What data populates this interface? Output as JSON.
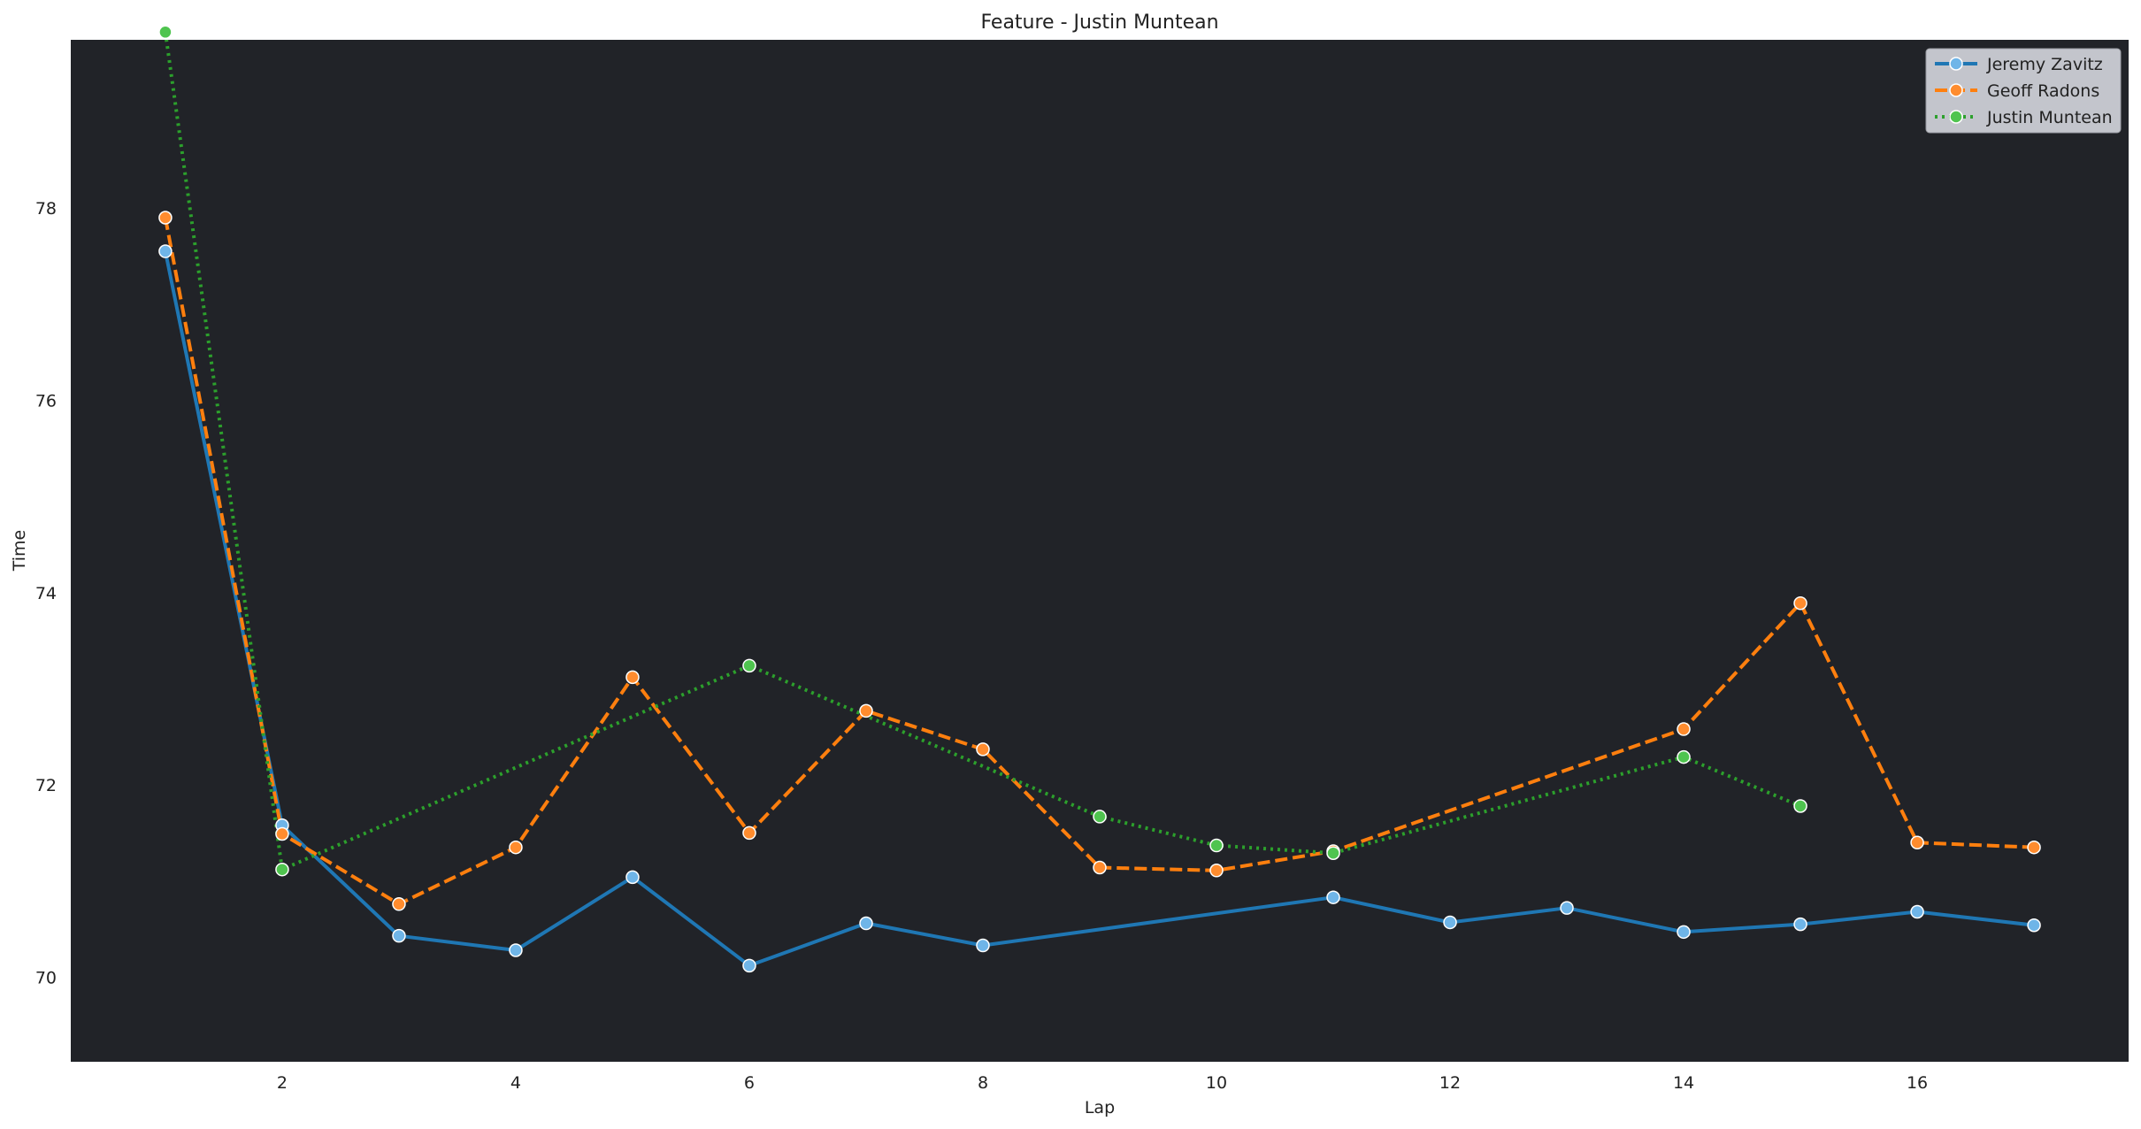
{
  "chart_data": {
    "type": "line",
    "title": "Feature - Justin Muntean",
    "xlabel": "Lap",
    "ylabel": "Time",
    "xlim": [
      0.19,
      17.81
    ],
    "ylim": [
      69.12,
      79.75
    ],
    "xticks": [
      2,
      4,
      6,
      8,
      10,
      12,
      14,
      16
    ],
    "yticks": [
      70,
      72,
      74,
      76,
      78
    ],
    "grid": false,
    "legend_position": "top-right",
    "colors": {
      "plot_background": "#212328",
      "page_background": "#ffffff",
      "legend_background": "#c3c5cc"
    },
    "series": [
      {
        "name": "Jeremy Zavitz",
        "color": "#1f77b4",
        "marker_face": "#6fb5e8",
        "dash": "solid",
        "x": [
          1,
          2,
          3,
          4,
          5,
          6,
          7,
          8,
          11,
          12,
          13,
          14,
          15,
          16,
          17
        ],
        "y": [
          77.55,
          71.58,
          70.43,
          70.28,
          71.04,
          70.12,
          70.56,
          70.33,
          70.83,
          70.57,
          70.72,
          70.47,
          70.55,
          70.68,
          70.54
        ]
      },
      {
        "name": "Geoff Radons",
        "color": "#ff7f0e",
        "marker_face": "#ff8c2e",
        "dash": "dashed",
        "x": [
          1,
          2,
          3,
          4,
          5,
          6,
          7,
          8,
          9,
          10,
          11,
          14,
          15,
          16,
          17
        ],
        "y": [
          77.9,
          71.49,
          70.76,
          71.35,
          73.12,
          71.5,
          72.77,
          72.37,
          71.14,
          71.11,
          71.31,
          72.58,
          73.89,
          71.4,
          71.35
        ]
      },
      {
        "name": "Justin Muntean",
        "color": "#2ca02c",
        "marker_face": "#4fc44f",
        "dash": "dotted",
        "x": [
          1,
          2,
          6,
          9,
          10,
          11,
          14,
          15
        ],
        "y": [
          79.83,
          71.12,
          73.24,
          71.67,
          71.37,
          71.29,
          72.29,
          71.78
        ]
      }
    ]
  }
}
